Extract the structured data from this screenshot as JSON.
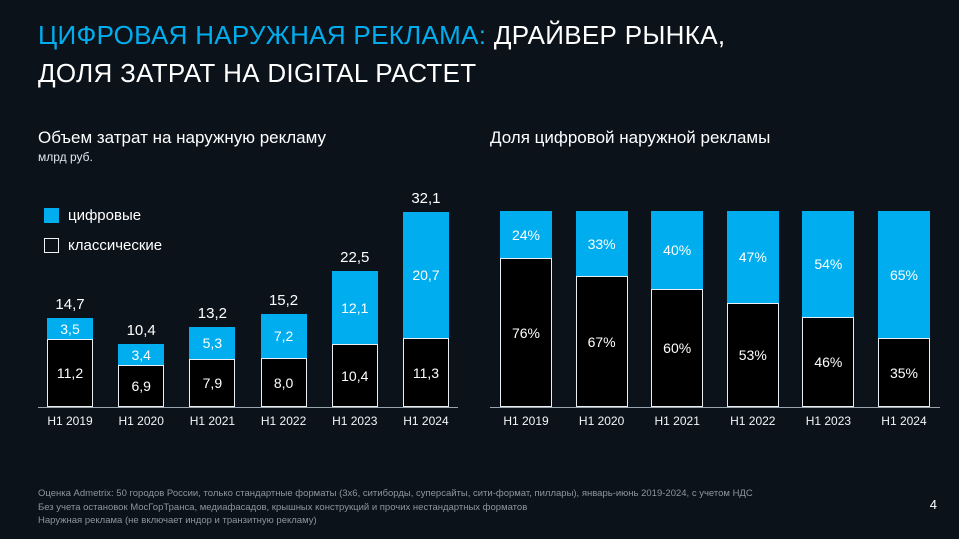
{
  "meta": {
    "page_number": "4"
  },
  "title": {
    "highlight": "ЦИФРОВАЯ НАРУЖНАЯ РЕКЛАМА:",
    "rest_line1": " ДРАЙВЕР РЫНКА,",
    "line2": "ДОЛЯ ЗАТРАТ НА DIGITAL РАСТЕТ"
  },
  "colors": {
    "background": "#0c121a",
    "accent_cyan": "#00aeef",
    "classic_fill": "#000000",
    "text": "#ffffff",
    "footnote": "#8d959d"
  },
  "legend": {
    "digital": "цифровые",
    "classic": "классические"
  },
  "chart_data": [
    {
      "type": "bar",
      "subtype": "stacked",
      "title": "Объем затрат на наружную рекламу",
      "subtitle": "млрд руб.",
      "ylabel": "млрд руб.",
      "ylim": [
        0,
        33
      ],
      "legend_position": "top-left",
      "grid": false,
      "categories": [
        "H1 2019",
        "H1 2020",
        "H1 2021",
        "H1 2022",
        "H1 2023",
        "H1 2024"
      ],
      "series": [
        {
          "name": "классические",
          "values": [
            11.2,
            6.9,
            7.9,
            8.0,
            10.4,
            11.3
          ],
          "labels": [
            "11,2",
            "6,9",
            "7,9",
            "8,0",
            "10,4",
            "11,3"
          ]
        },
        {
          "name": "цифровые",
          "values": [
            3.5,
            3.4,
            5.3,
            7.2,
            12.1,
            20.7
          ],
          "labels": [
            "3,5",
            "3,4",
            "5,3",
            "7,2",
            "12,1",
            "20,7"
          ]
        }
      ],
      "totals": [
        14.7,
        10.4,
        13.2,
        15.2,
        22.5,
        32.1
      ],
      "total_labels": [
        "14,7",
        "10,4",
        "13,2",
        "15,2",
        "22,5",
        "32,1"
      ]
    },
    {
      "type": "bar",
      "subtype": "stacked-100",
      "title": "Доля цифровой наружной рекламы",
      "ylim": [
        0,
        100
      ],
      "grid": false,
      "categories": [
        "H1 2019",
        "H1 2020",
        "H1 2021",
        "H1 2022",
        "H1 2023",
        "H1 2024"
      ],
      "series": [
        {
          "name": "классические",
          "values": [
            76,
            67,
            60,
            53,
            46,
            35
          ],
          "labels": [
            "76%",
            "67%",
            "60%",
            "53%",
            "46%",
            "35%"
          ]
        },
        {
          "name": "цифровые",
          "values": [
            24,
            33,
            40,
            47,
            54,
            65
          ],
          "labels": [
            "24%",
            "33%",
            "40%",
            "47%",
            "54%",
            "65%"
          ]
        }
      ]
    }
  ],
  "footnotes": [
    "Оценка Admetrix: 50 городов России, только стандартные форматы (3х6, ситиборды, суперсайты, сити-формат, пиллары), январь-июнь 2019-2024, с учетом НДС",
    "Без учета остановок МосГорТранса, медиафасадов, крышных конструкций и прочих нестандартных форматов",
    "Наружная реклама (не включает индор и транзитную рекламу)"
  ]
}
